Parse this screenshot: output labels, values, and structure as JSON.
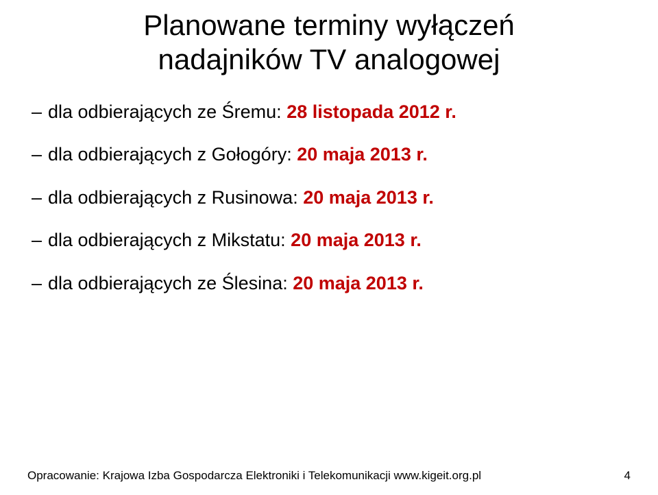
{
  "title_line1": "Planowane terminy wyłączeń",
  "title_line2": "nadajników TV analogowej",
  "accent_color": "#c00000",
  "bullets": [
    {
      "prefix": "dla odbierających ze Śremu: ",
      "date": "28 listopada 2012 r."
    },
    {
      "prefix": "dla odbierających z Gołogóry: ",
      "date": "20 maja 2013 r."
    },
    {
      "prefix": "dla odbierających z Rusinowa: ",
      "date": "20 maja 2013 r."
    },
    {
      "prefix": "dla odbierających z Mikstatu: ",
      "date": "20 maja 2013 r."
    },
    {
      "prefix": "dla odbierających ze Ślesina: ",
      "date": "20 maja 2013 r."
    }
  ],
  "footer": "Opracowanie: Krajowa Izba Gospodarcza Elektroniki i Telekomunikacji www.kigeit.org.pl",
  "page_number": "4"
}
